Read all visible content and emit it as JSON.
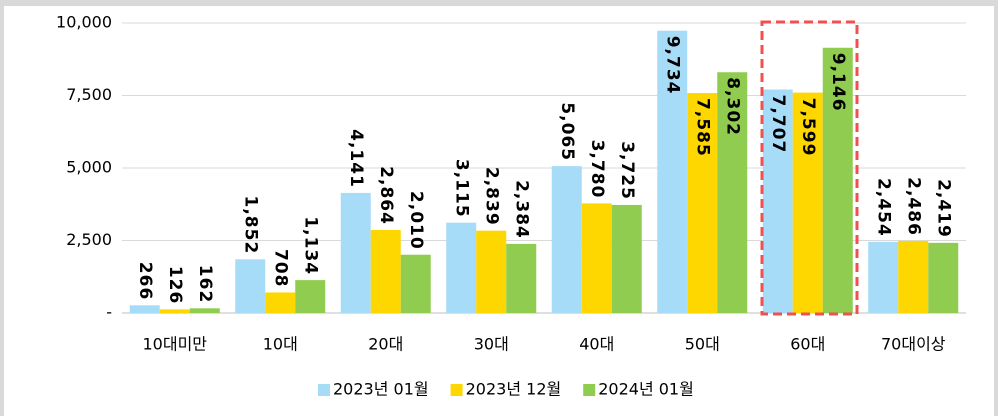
{
  "chart_data": {
    "type": "bar",
    "categories": [
      "10대미만",
      "10대",
      "20대",
      "30대",
      "40대",
      "50대",
      "60대",
      "70대이상"
    ],
    "series": [
      {
        "name": "2023년 01월",
        "color": "#a6dcf8",
        "label_color": "#000000",
        "values": [
          266,
          1852,
          4141,
          3115,
          5065,
          9734,
          7707,
          2454
        ],
        "value_labels": [
          "266",
          "1,852",
          "4,141",
          "3,115",
          "5,065",
          "9,734",
          "7,707",
          "2,454"
        ]
      },
      {
        "name": "2023년 12월",
        "color": "#ffd700",
        "label_color": "#000000",
        "values": [
          126,
          708,
          2864,
          2839,
          3780,
          7585,
          7599,
          2486
        ],
        "value_labels": [
          "126",
          "708",
          "2,864",
          "2,839",
          "3,780",
          "7,585",
          "7,599",
          "2,486"
        ]
      },
      {
        "name": "2024년 01월",
        "color": "#8fcc4f",
        "label_color": "#ff0000",
        "values": [
          162,
          1134,
          2010,
          2384,
          3725,
          8302,
          9146,
          2419
        ],
        "value_labels": [
          "162",
          "1,134",
          "2,010",
          "2,384",
          "3,725",
          "8,302",
          "9,146",
          "2,419"
        ]
      }
    ],
    "ylim": [
      0,
      10000
    ],
    "yticks": [
      {
        "value": 0,
        "label": "-"
      },
      {
        "value": 2500,
        "label": "2,500"
      },
      {
        "value": 5000,
        "label": "5,000"
      },
      {
        "value": 7500,
        "label": "7,500"
      },
      {
        "value": 10000,
        "label": "10,000"
      }
    ],
    "grid": true,
    "legend": "bottom"
  }
}
